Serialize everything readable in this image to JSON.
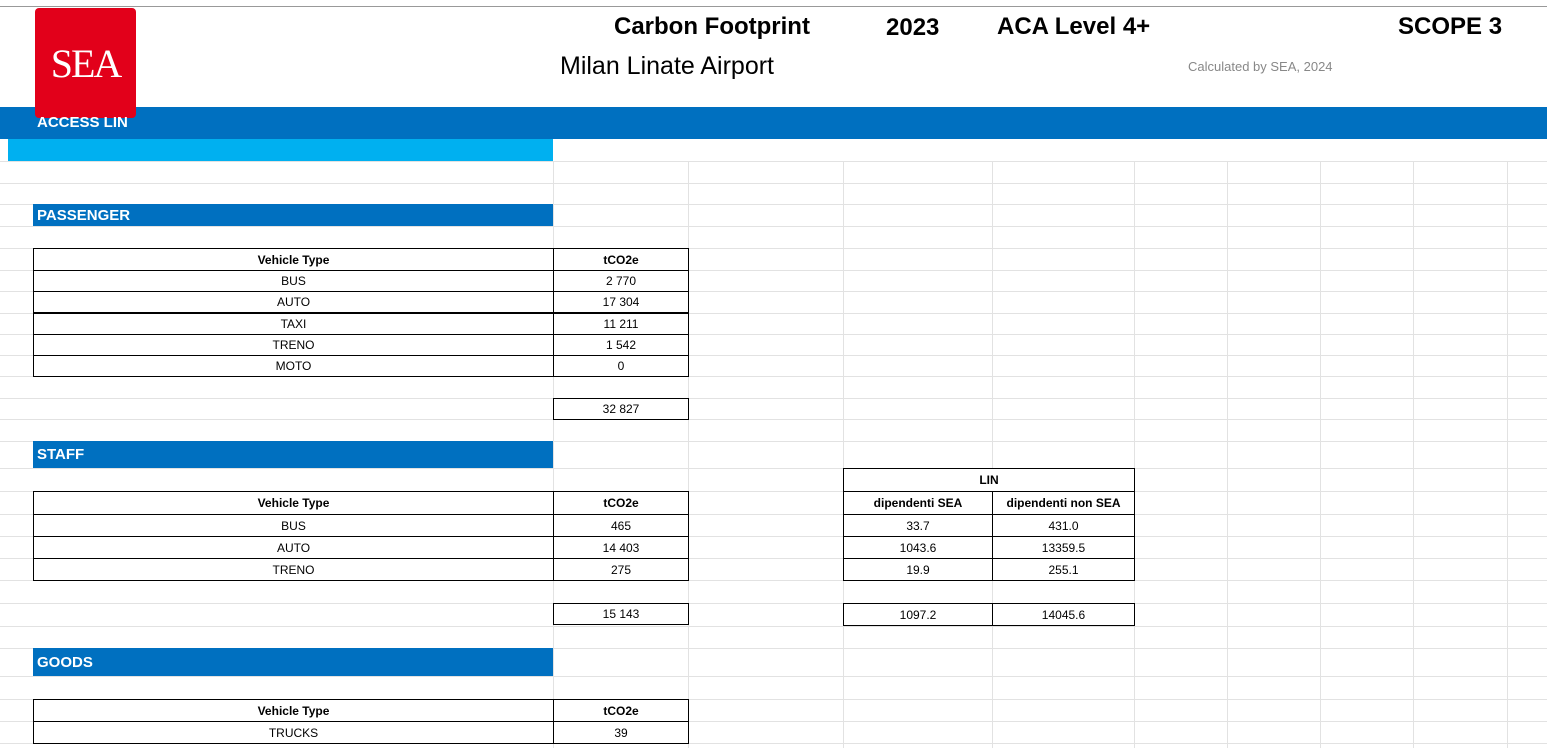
{
  "logo": "SEA",
  "header": {
    "title": "Carbon Footprint",
    "year": "2023",
    "level": "ACA Level 4+",
    "scope": "SCOPE 3",
    "subtitle": "Milan Linate Airport",
    "credit": "Calculated by SEA, 2024"
  },
  "section": "ACCESS LIN",
  "passenger": {
    "label": "PASSENGER",
    "columns": [
      "Vehicle Type",
      "tCO2e"
    ],
    "rows": [
      [
        "BUS",
        "2 770"
      ],
      [
        "AUTO",
        "17 304"
      ],
      [
        "TAXI",
        "11 211"
      ],
      [
        "TRENO",
        "1 542"
      ],
      [
        "MOTO",
        "0"
      ]
    ],
    "total": "32 827"
  },
  "staff": {
    "label": "STAFF",
    "columns": [
      "Vehicle Type",
      "tCO2e"
    ],
    "rows": [
      [
        "BUS",
        "465"
      ],
      [
        "AUTO",
        "14 403"
      ],
      [
        "TRENO",
        "275"
      ]
    ],
    "total": "15 143",
    "split": {
      "title": "LIN",
      "columns": [
        "dipendenti SEA",
        "dipendenti non SEA"
      ],
      "rows": [
        [
          "33.7",
          "431.0"
        ],
        [
          "1043.6",
          "13359.5"
        ],
        [
          "19.9",
          "255.1"
        ]
      ],
      "total": [
        "1097.2",
        "14045.6"
      ]
    }
  },
  "goods": {
    "label": "GOODS",
    "columns": [
      "Vehicle Type",
      "tCO2e"
    ],
    "rows": [
      [
        "TRUCKS",
        "39"
      ]
    ]
  }
}
